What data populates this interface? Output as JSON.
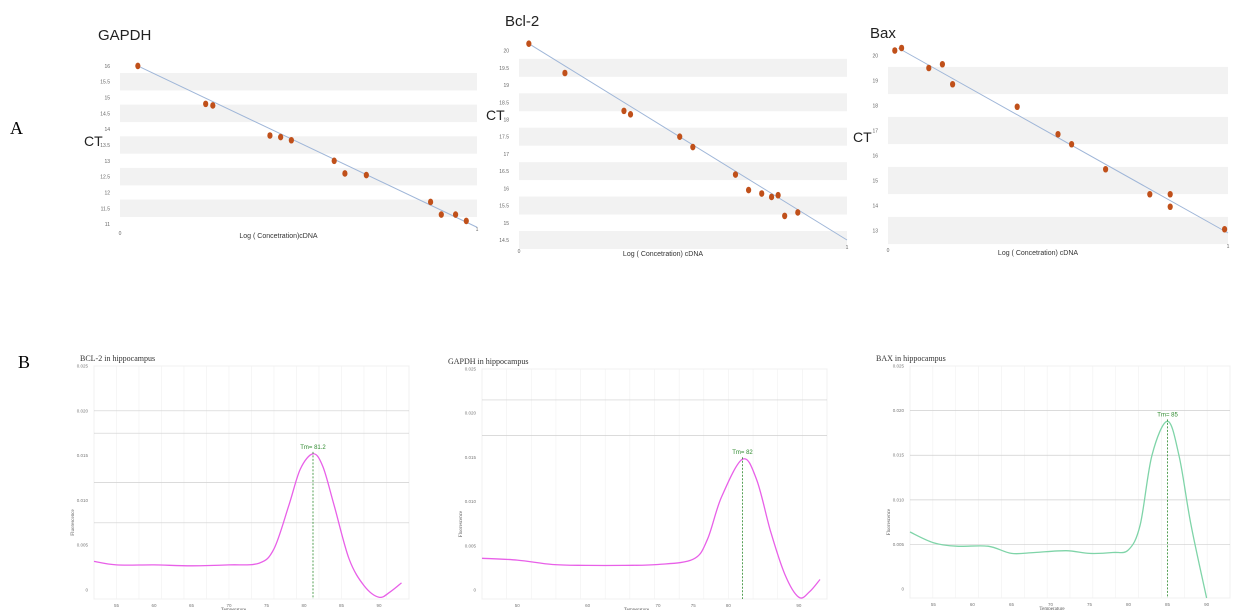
{
  "panels": {
    "a": "A",
    "b": "B"
  },
  "chart_data": [
    {
      "type": "scatter",
      "title": "GAPDH",
      "xlabel": "Log ( Concetration)cDNA",
      "ylabel": "CT",
      "xlim": [
        0,
        1
      ],
      "ylim": [
        10.75,
        16.25
      ],
      "yticks": [
        "16",
        "15.5",
        "15",
        "14.5",
        "14",
        "13.5",
        "13",
        "12.5",
        "12",
        "11.5",
        "11"
      ],
      "xticks": [
        "0",
        "1"
      ],
      "colors": {
        "point": "#c0501a",
        "trend": "#9fb6d8",
        "band": "#f2f2f2"
      },
      "trend": [
        [
          0.05,
          16.0
        ],
        [
          1.0,
          10.9
        ]
      ],
      "x": [
        0.05,
        0.24,
        0.26,
        0.42,
        0.45,
        0.48,
        0.6,
        0.63,
        0.69,
        0.87,
        0.9,
        0.94,
        0.97
      ],
      "y": [
        16.0,
        14.8,
        14.75,
        13.8,
        13.75,
        13.65,
        13.0,
        12.6,
        12.55,
        11.7,
        11.3,
        11.3,
        11.1
      ]
    },
    {
      "type": "scatter",
      "title": "Bcl-2",
      "xlabel": "Log ( Concetration)  cDNA",
      "ylabel": "CT",
      "xlim": [
        0,
        1
      ],
      "ylim": [
        14.5,
        20.25
      ],
      "yticks": [
        "20",
        "19.5",
        "19",
        "18.5",
        "18",
        "17.5",
        "17",
        "16.5",
        "16",
        "15.5",
        "15",
        "14.5"
      ],
      "xticks": [
        "0",
        "1"
      ],
      "colors": {
        "point": "#c0501a",
        "trend": "#9fb6d8",
        "band": "#f2f2f2"
      },
      "trend": [
        [
          0.03,
          20.2
        ],
        [
          1.0,
          14.5
        ]
      ],
      "x": [
        0.03,
        0.14,
        0.32,
        0.34,
        0.49,
        0.53,
        0.66,
        0.7,
        0.74,
        0.77,
        0.79,
        0.81,
        0.85
      ],
      "y": [
        20.2,
        19.35,
        18.25,
        18.15,
        17.5,
        17.2,
        16.4,
        15.95,
        15.85,
        15.75,
        15.8,
        15.2,
        15.3
      ]
    },
    {
      "type": "scatter",
      "title": "Bax",
      "xlabel": "Log ( Concetration)  cDNA",
      "ylabel": "CT",
      "xlim": [
        0,
        1
      ],
      "ylim": [
        12.7,
        20.3
      ],
      "yticks": [
        "20",
        "19",
        "18",
        "17",
        "16",
        "15",
        "14",
        "13"
      ],
      "xticks": [
        "0",
        "1"
      ],
      "colors": {
        "point": "#c0501a",
        "trend": "#9fb6d8",
        "band": "#f2f2f2"
      },
      "trend": [
        [
          0.03,
          20.3
        ],
        [
          1.0,
          12.9
        ]
      ],
      "x": [
        0.02,
        0.04,
        0.12,
        0.16,
        0.19,
        0.38,
        0.5,
        0.54,
        0.64,
        0.77,
        0.83,
        0.83,
        0.99
      ],
      "y": [
        20.2,
        20.3,
        19.5,
        19.65,
        18.85,
        17.95,
        16.85,
        16.45,
        15.45,
        14.45,
        14.45,
        13.95,
        13.05
      ]
    },
    {
      "type": "line",
      "title": "BCL-2 in hippocampus",
      "xlabel": "Temperature",
      "ylabel": "Fluorescence",
      "xlim": [
        52,
        94
      ],
      "ylim": [
        -0.001,
        0.025
      ],
      "xticks": [
        "55",
        "60",
        "65",
        "70",
        "75",
        "80",
        "85",
        "90"
      ],
      "xtick_values": [
        55,
        60,
        65,
        70,
        75,
        80,
        85,
        90
      ],
      "yticks": [
        "0.025",
        "0.020",
        "0.015",
        "0.010",
        "0.005",
        "0"
      ],
      "ytick_values": [
        0.025,
        0.02,
        0.015,
        0.01,
        0.005,
        0
      ],
      "peak_label": "Tm= 81.2",
      "peak_x": 81.2,
      "colors": {
        "curve": "#e860e8",
        "peak": "#2d8a2d",
        "grid": "#e4e4e4"
      },
      "x": [
        52,
        55,
        60,
        65,
        70,
        74,
        76,
        78,
        79.5,
        81.2,
        82.5,
        84,
        86,
        88,
        90,
        91.5,
        93
      ],
      "y": [
        0.0032,
        0.0028,
        0.0028,
        0.0027,
        0.0028,
        0.003,
        0.0046,
        0.0095,
        0.0135,
        0.0152,
        0.0138,
        0.0095,
        0.0035,
        0.0005,
        -0.0008,
        -0.0002,
        0.0008
      ]
    },
    {
      "type": "line",
      "title": "GAPDH in hippocampus",
      "xlabel": "Temperature",
      "ylabel": "Fluorescence",
      "xlim": [
        45,
        94
      ],
      "ylim": [
        -0.001,
        0.025
      ],
      "xticks": [
        "50",
        "60",
        "70",
        "75",
        "80",
        "90"
      ],
      "xtick_values": [
        50,
        60,
        70,
        75,
        80,
        90
      ],
      "yticks": [
        "0.025",
        "0.020",
        "0.015",
        "0.010",
        "0.005",
        "0"
      ],
      "ytick_values": [
        0.025,
        0.02,
        0.015,
        0.01,
        0.005,
        0
      ],
      "peak_label": "Tm= 82",
      "peak_x": 82,
      "colors": {
        "curve": "#e860e8",
        "peak": "#2d8a2d",
        "grid": "#e4e4e4"
      },
      "x": [
        45,
        50,
        55,
        60,
        65,
        70,
        75,
        77,
        79,
        82,
        84,
        86,
        88,
        90,
        91.5,
        93
      ],
      "y": [
        0.0036,
        0.0034,
        0.0029,
        0.0028,
        0.0028,
        0.0029,
        0.0035,
        0.0057,
        0.0105,
        0.0148,
        0.0125,
        0.0066,
        0.0018,
        -0.0008,
        -0.0002,
        0.0012
      ]
    },
    {
      "type": "line",
      "title": "BAX in hippocampus",
      "xlabel": "Temperature",
      "ylabel": "Fluorescence",
      "xlim": [
        52,
        93
      ],
      "ylim": [
        -0.001,
        0.025
      ],
      "xticks": [
        "55",
        "60",
        "65",
        "70",
        "75",
        "80",
        "85",
        "90"
      ],
      "xtick_values": [
        55,
        60,
        65,
        70,
        75,
        80,
        85,
        90
      ],
      "yticks": [
        "0.025",
        "0.020",
        "0.015",
        "0.010",
        "0.005",
        "0"
      ],
      "ytick_values": [
        0.025,
        0.02,
        0.015,
        0.01,
        0.005,
        0
      ],
      "peak_label": "Tm= 85",
      "peak_x": 85,
      "colors": {
        "curve": "#7fd4a8",
        "peak": "#2d8a2d",
        "grid": "#e4e4e4"
      },
      "x": [
        52,
        55,
        58,
        62,
        65,
        68,
        72,
        75,
        78,
        80,
        81.5,
        83,
        85,
        86.5,
        88,
        90
      ],
      "y": [
        0.0064,
        0.0052,
        0.0048,
        0.0048,
        0.004,
        0.0041,
        0.0043,
        0.004,
        0.0041,
        0.0044,
        0.0072,
        0.015,
        0.0188,
        0.0148,
        0.0072,
        -0.001
      ]
    }
  ]
}
